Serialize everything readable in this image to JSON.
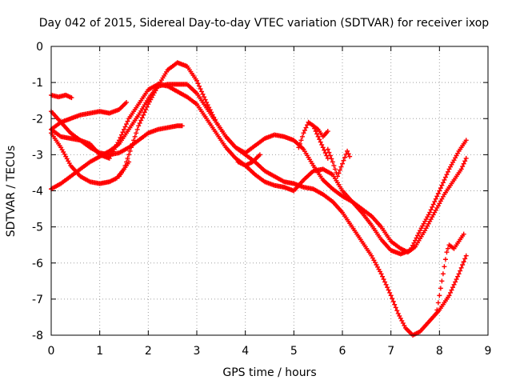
{
  "chart_data": {
    "type": "scatter",
    "title": "Day 042 of 2015, Sidereal Day-to-day VTEC variation (SDTVAR) for receiver ixop",
    "xlabel": "GPS time / hours",
    "ylabel": "SDTVAR / TECUs",
    "xlim": [
      0,
      9
    ],
    "ylim": [
      -8,
      0
    ],
    "xticks": [
      "0",
      "1",
      "2",
      "3",
      "4",
      "5",
      "6",
      "7",
      "8",
      "9"
    ],
    "yticks": [
      "0",
      "-1",
      "-2",
      "-3",
      "-4",
      "-5",
      "-6",
      "-7",
      "-8"
    ],
    "grid": true,
    "marker": "+",
    "color": "#ff0000",
    "series": [
      {
        "name": "arc-a",
        "x": [
          0.0,
          0.15,
          0.3,
          0.42
        ],
        "y": [
          -1.35,
          -1.4,
          -1.35,
          -1.42
        ]
      },
      {
        "name": "arc-b",
        "x": [
          0.0,
          0.2,
          0.4,
          0.6,
          0.8,
          1.0,
          1.2,
          1.4,
          1.6,
          1.8,
          2.0,
          2.2,
          2.4,
          2.6,
          2.7
        ],
        "y": [
          -1.8,
          -2.1,
          -2.4,
          -2.6,
          -2.8,
          -2.95,
          -3.0,
          -2.95,
          -2.8,
          -2.6,
          -2.4,
          -2.3,
          -2.25,
          -2.2,
          -2.2
        ]
      },
      {
        "name": "arc-c",
        "x": [
          0.0,
          0.2,
          0.4,
          0.6,
          0.8,
          1.0,
          1.2,
          1.4,
          1.55
        ],
        "y": [
          -2.3,
          -2.1,
          -2.0,
          -1.9,
          -1.85,
          -1.8,
          -1.85,
          -1.75,
          -1.55
        ]
      },
      {
        "name": "arc-d",
        "x": [
          0.0,
          0.2,
          0.4,
          0.6,
          0.8,
          1.0,
          1.2,
          1.4,
          1.6,
          1.8,
          2.0,
          2.2,
          2.4,
          2.6,
          2.8,
          3.0,
          3.2,
          3.4,
          3.6,
          3.8,
          4.0,
          4.2,
          4.4,
          4.6,
          4.8,
          5.0,
          5.2,
          5.4,
          5.6,
          5.8,
          6.0,
          6.2,
          6.4,
          6.6,
          6.8,
          7.0,
          7.2,
          7.35,
          7.5,
          7.7,
          7.9,
          8.1,
          8.3,
          8.45,
          8.55
        ],
        "y": [
          -2.3,
          -2.5,
          -2.55,
          -2.6,
          -2.7,
          -3.0,
          -3.1,
          -2.6,
          -2.0,
          -1.6,
          -1.2,
          -1.05,
          -1.1,
          -1.25,
          -1.4,
          -1.6,
          -2.0,
          -2.4,
          -2.8,
          -3.1,
          -3.3,
          -3.55,
          -3.75,
          -3.85,
          -3.9,
          -4.0,
          -3.7,
          -3.45,
          -3.4,
          -3.55,
          -4.0,
          -4.3,
          -4.5,
          -4.7,
          -5.0,
          -5.4,
          -5.6,
          -5.7,
          -5.55,
          -5.1,
          -4.6,
          -4.1,
          -3.7,
          -3.4,
          -3.1
        ]
      },
      {
        "name": "arc-e",
        "x": [
          0.0,
          0.2,
          0.4,
          0.6,
          0.8,
          1.0,
          1.2,
          1.4,
          1.6,
          1.8,
          2.0,
          2.2,
          2.4,
          2.6,
          2.8,
          3.0,
          3.2,
          3.4,
          3.6,
          3.8,
          4.0,
          4.2,
          4.4,
          4.6,
          4.8,
          5.0,
          5.2,
          5.4,
          5.6,
          5.8,
          6.0,
          6.2,
          6.4,
          6.6,
          6.8,
          7.0,
          7.15,
          7.3,
          7.45,
          7.6,
          7.8,
          8.0,
          8.2,
          8.4,
          8.55
        ],
        "y": [
          -3.95,
          -3.8,
          -3.6,
          -3.4,
          -3.2,
          -3.05,
          -2.9,
          -2.7,
          -2.3,
          -1.9,
          -1.45,
          -1.1,
          -1.05,
          -1.05,
          -1.05,
          -1.3,
          -1.7,
          -2.1,
          -2.5,
          -2.8,
          -3.0,
          -3.2,
          -3.45,
          -3.6,
          -3.75,
          -3.8,
          -3.9,
          -3.95,
          -4.1,
          -4.3,
          -4.6,
          -5.0,
          -5.4,
          -5.8,
          -6.3,
          -6.9,
          -7.4,
          -7.8,
          -8.0,
          -7.9,
          -7.6,
          -7.3,
          -6.9,
          -6.3,
          -5.8
        ]
      },
      {
        "name": "arc-f",
        "x": [
          0.0,
          0.2,
          0.4,
          0.6,
          0.8,
          1.0,
          1.2,
          1.35,
          1.5,
          1.65,
          1.8,
          2.0,
          2.2,
          2.4,
          2.6,
          2.8,
          3.0,
          3.2,
          3.4,
          3.6,
          3.8,
          4.0,
          4.2,
          4.4,
          4.6,
          4.8,
          5.0,
          5.2,
          5.4,
          5.6,
          5.8,
          6.0,
          6.2,
          6.4,
          6.6,
          6.8,
          7.0,
          7.2,
          7.4,
          7.6,
          7.8,
          8.0,
          8.2,
          8.4,
          8.55
        ],
        "y": [
          -2.4,
          -2.8,
          -3.3,
          -3.6,
          -3.75,
          -3.8,
          -3.75,
          -3.65,
          -3.4,
          -2.8,
          -2.2,
          -1.6,
          -1.1,
          -0.65,
          -0.45,
          -0.55,
          -0.95,
          -1.55,
          -2.1,
          -2.5,
          -2.8,
          -2.95,
          -2.75,
          -2.55,
          -2.45,
          -2.5,
          -2.6,
          -2.85,
          -3.3,
          -3.7,
          -3.95,
          -4.15,
          -4.3,
          -4.6,
          -4.95,
          -5.35,
          -5.65,
          -5.75,
          -5.65,
          -5.1,
          -4.6,
          -4.0,
          -3.4,
          -2.9,
          -2.6
        ]
      },
      {
        "name": "arc-g",
        "x": [
          1.4,
          1.45,
          1.5,
          1.55,
          1.6
        ],
        "y": [
          -3.6,
          -3.5,
          -3.4,
          -3.3,
          -3.2
        ]
      },
      {
        "name": "arc-h",
        "x": [
          3.85,
          4.0,
          4.15,
          4.3
        ],
        "y": [
          -3.2,
          -3.3,
          -3.2,
          -3.0
        ]
      },
      {
        "name": "arc-i",
        "x": [
          5.1,
          5.2,
          5.3,
          5.4,
          5.5,
          5.6,
          5.7
        ],
        "y": [
          -2.8,
          -2.4,
          -2.1,
          -2.2,
          -2.5,
          -2.8,
          -3.1
        ]
      },
      {
        "name": "arc-j",
        "x": [
          5.7,
          5.8,
          5.9,
          6.0,
          6.1,
          6.15
        ],
        "y": [
          -2.85,
          -3.2,
          -3.6,
          -3.25,
          -2.9,
          -3.05
        ]
      },
      {
        "name": "arc-k",
        "x": [
          5.4,
          5.5,
          5.6,
          5.7
        ],
        "y": [
          -2.2,
          -2.3,
          -2.5,
          -2.35
        ]
      },
      {
        "name": "arc-l",
        "x": [
          7.95,
          8.0,
          8.05,
          8.1,
          8.15,
          8.2,
          8.3,
          8.4,
          8.5
        ],
        "y": [
          -7.3,
          -6.9,
          -6.5,
          -6.1,
          -5.7,
          -5.5,
          -5.6,
          -5.4,
          -5.2
        ]
      }
    ]
  }
}
